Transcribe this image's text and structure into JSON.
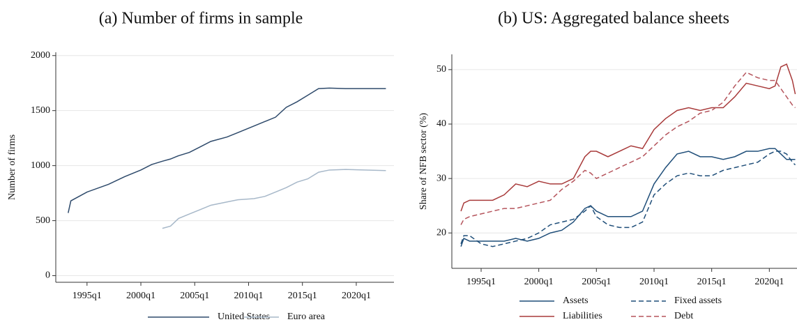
{
  "chart_data": [
    {
      "type": "line",
      "title": "(a) Number of firms in sample",
      "ylabel": "Number of firms",
      "x": [
        1993.25,
        1993.5,
        1995,
        1997,
        1998.5,
        2000,
        2001,
        2002,
        2002.75,
        2003.5,
        2004.5,
        2005.5,
        2006.5,
        2008,
        2009,
        2010.5,
        2011.5,
        2012.5,
        2013.5,
        2014.5,
        2015.5,
        2016.5,
        2017.5,
        2019,
        2021,
        2022.75
      ],
      "series": [
        {
          "name": "United States",
          "color": "#2e4a6b",
          "dash": false,
          "values": [
            570,
            680,
            760,
            830,
            900,
            960,
            1010,
            1040,
            1060,
            1090,
            1120,
            1170,
            1220,
            1260,
            1300,
            1360,
            1400,
            1440,
            1530,
            1580,
            1640,
            1700,
            1705,
            1700,
            1700,
            1700
          ]
        },
        {
          "name": "Euro area",
          "color": "#a7b8c9",
          "dash": false,
          "values": [
            null,
            null,
            null,
            null,
            null,
            null,
            null,
            430,
            450,
            520,
            560,
            600,
            640,
            670,
            690,
            700,
            720,
            760,
            800,
            850,
            880,
            940,
            960,
            965,
            960,
            955
          ]
        }
      ],
      "xlim": [
        1992.1,
        2023.5
      ],
      "ylim": [
        -60,
        2030
      ],
      "xticks": [
        {
          "value": 1995,
          "label": "1995q1"
        },
        {
          "value": 2000,
          "label": "2000q1"
        },
        {
          "value": 2005,
          "label": "2005q1"
        },
        {
          "value": 2010,
          "label": "2010q1"
        },
        {
          "value": 2015,
          "label": "2015q1"
        },
        {
          "value": 2020,
          "label": "2020q1"
        }
      ],
      "yticks": [
        0,
        500,
        1000,
        1500,
        2000
      ],
      "grid": true,
      "legend": "bottom"
    },
    {
      "type": "line",
      "title": "(b) US: Aggregated balance sheets",
      "ylabel": "Share of NFB sector (%)",
      "x": [
        1993.25,
        1993.5,
        1994,
        1995,
        1996,
        1997,
        1998,
        1999,
        2000,
        2001,
        2002,
        2003,
        2004,
        2004.5,
        2005,
        2006,
        2007,
        2008,
        2009,
        2010,
        2011,
        2012,
        2013,
        2014,
        2015,
        2016,
        2017,
        2018,
        2019,
        2020,
        2020.5,
        2021,
        2021.5,
        2022,
        2022.25
      ],
      "series": [
        {
          "name": "Assets",
          "color": "#1f4e79",
          "dash": false,
          "values": [
            17.5,
            19,
            18.5,
            18.5,
            18.5,
            18.5,
            19,
            18.5,
            19,
            20,
            20.5,
            22,
            24.5,
            25,
            24,
            23,
            23,
            23,
            24,
            29,
            32,
            34.5,
            35,
            34,
            34,
            33.5,
            34,
            35,
            35,
            35.5,
            35.5,
            34.5,
            33.5,
            33.5,
            33.5
          ]
        },
        {
          "name": "Fixed assets",
          "color": "#1f4e79",
          "dash": true,
          "values": [
            18,
            19.5,
            19.5,
            18,
            17.5,
            18,
            18.5,
            19,
            20,
            21.5,
            22,
            22.5,
            24,
            25,
            23,
            21.5,
            21,
            21,
            22,
            27,
            29,
            30.5,
            31,
            30.5,
            30.5,
            31.5,
            32,
            32.5,
            33,
            34.5,
            35,
            35,
            34.5,
            33,
            32.5
          ]
        },
        {
          "name": "Liabilities",
          "color": "#a83a3a",
          "dash": false,
          "values": [
            24,
            25.5,
            26,
            26,
            26,
            27,
            29,
            28.5,
            29.5,
            29,
            29,
            30,
            34,
            35,
            35,
            34,
            35,
            36,
            35.5,
            39,
            41,
            42.5,
            43,
            42.5,
            43,
            43,
            45,
            47.5,
            47,
            46.5,
            47,
            50.5,
            51,
            48,
            45.5
          ]
        },
        {
          "name": "Debt",
          "color": "#b5545c",
          "dash": true,
          "values": [
            21.5,
            22.5,
            23,
            23.5,
            24,
            24.5,
            24.5,
            25,
            25.5,
            26,
            28,
            29.5,
            31.5,
            31,
            30,
            31,
            32,
            33,
            34,
            36,
            38,
            39.5,
            40.5,
            42,
            42.5,
            44,
            47,
            49.5,
            48.5,
            48,
            48,
            46.5,
            45,
            43.5,
            43
          ]
        }
      ],
      "xlim": [
        1992.46,
        2022.4
      ],
      "ylim": [
        13.5,
        52.8
      ],
      "xticks": [
        {
          "value": 1995,
          "label": "1995q1"
        },
        {
          "value": 2000,
          "label": "2000q1"
        },
        {
          "value": 2005,
          "label": "2005q1"
        },
        {
          "value": 2010,
          "label": "2010q1"
        },
        {
          "value": 2015,
          "label": "2015q1"
        },
        {
          "value": 2020,
          "label": "2020q1"
        }
      ],
      "yticks": [
        20,
        30,
        40,
        50
      ],
      "grid": true,
      "legend": "bottom"
    }
  ]
}
